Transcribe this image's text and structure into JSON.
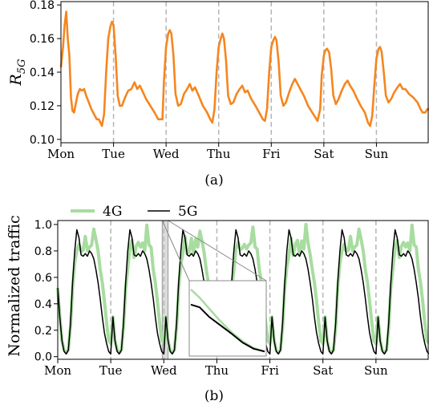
{
  "chart_data": [
    {
      "type": "line",
      "ylabel_main": "R",
      "ylabel_sub": "5G",
      "xticks": [
        "Mon",
        "Tue",
        "Wed",
        "Thu",
        "Fri",
        "Sat",
        "Sun"
      ],
      "yticks": [
        "0.10",
        "0.12",
        "0.14",
        "0.16",
        "0.18"
      ],
      "ylim": [
        0.098,
        0.182
      ],
      "xlim": [
        0,
        7
      ],
      "day_separators": [
        1,
        2,
        3,
        4,
        5,
        6
      ],
      "caption": "(a)",
      "series": [
        {
          "color": "#f5861f",
          "points": [
            [
              0.0,
              0.143
            ],
            [
              0.04,
              0.155
            ],
            [
              0.07,
              0.168
            ],
            [
              0.1,
              0.176
            ],
            [
              0.13,
              0.16
            ],
            [
              0.16,
              0.15
            ],
            [
              0.19,
              0.125
            ],
            [
              0.22,
              0.117
            ],
            [
              0.25,
              0.116
            ],
            [
              0.28,
              0.121
            ],
            [
              0.32,
              0.127
            ],
            [
              0.36,
              0.13
            ],
            [
              0.4,
              0.129
            ],
            [
              0.44,
              0.13
            ],
            [
              0.48,
              0.126
            ],
            [
              0.53,
              0.122
            ],
            [
              0.58,
              0.118
            ],
            [
              0.63,
              0.115
            ],
            [
              0.68,
              0.112
            ],
            [
              0.72,
              0.112
            ],
            [
              0.78,
              0.108
            ],
            [
              0.82,
              0.115
            ],
            [
              0.86,
              0.14
            ],
            [
              0.9,
              0.16
            ],
            [
              0.94,
              0.167
            ],
            [
              0.97,
              0.17
            ],
            [
              1.0,
              0.168
            ],
            [
              1.04,
              0.15
            ],
            [
              1.08,
              0.126
            ],
            [
              1.12,
              0.12
            ],
            [
              1.16,
              0.12
            ],
            [
              1.22,
              0.125
            ],
            [
              1.28,
              0.129
            ],
            [
              1.34,
              0.13
            ],
            [
              1.4,
              0.134
            ],
            [
              1.45,
              0.13
            ],
            [
              1.5,
              0.132
            ],
            [
              1.56,
              0.128
            ],
            [
              1.62,
              0.124
            ],
            [
              1.7,
              0.12
            ],
            [
              1.78,
              0.116
            ],
            [
              1.85,
              0.112
            ],
            [
              1.9,
              0.112
            ],
            [
              1.93,
              0.112
            ],
            [
              1.96,
              0.135
            ],
            [
              2.0,
              0.155
            ],
            [
              2.04,
              0.163
            ],
            [
              2.07,
              0.165
            ],
            [
              2.1,
              0.163
            ],
            [
              2.14,
              0.15
            ],
            [
              2.18,
              0.127
            ],
            [
              2.23,
              0.12
            ],
            [
              2.28,
              0.121
            ],
            [
              2.34,
              0.127
            ],
            [
              2.4,
              0.13
            ],
            [
              2.45,
              0.133
            ],
            [
              2.5,
              0.129
            ],
            [
              2.55,
              0.131
            ],
            [
              2.62,
              0.126
            ],
            [
              2.7,
              0.12
            ],
            [
              2.78,
              0.116
            ],
            [
              2.84,
              0.112
            ],
            [
              2.88,
              0.11
            ],
            [
              2.92,
              0.118
            ],
            [
              2.96,
              0.14
            ],
            [
              3.0,
              0.155
            ],
            [
              3.04,
              0.16
            ],
            [
              3.07,
              0.163
            ],
            [
              3.1,
              0.16
            ],
            [
              3.14,
              0.147
            ],
            [
              3.18,
              0.126
            ],
            [
              3.23,
              0.121
            ],
            [
              3.28,
              0.122
            ],
            [
              3.34,
              0.127
            ],
            [
              3.4,
              0.13
            ],
            [
              3.45,
              0.132
            ],
            [
              3.5,
              0.128
            ],
            [
              3.55,
              0.129
            ],
            [
              3.62,
              0.124
            ],
            [
              3.7,
              0.12
            ],
            [
              3.77,
              0.116
            ],
            [
              3.84,
              0.112
            ],
            [
              3.88,
              0.111
            ],
            [
              3.92,
              0.118
            ],
            [
              3.96,
              0.14
            ],
            [
              4.0,
              0.155
            ],
            [
              4.04,
              0.159
            ],
            [
              4.07,
              0.161
            ],
            [
              4.1,
              0.159
            ],
            [
              4.14,
              0.146
            ],
            [
              4.18,
              0.126
            ],
            [
              4.23,
              0.12
            ],
            [
              4.28,
              0.122
            ],
            [
              4.34,
              0.128
            ],
            [
              4.4,
              0.133
            ],
            [
              4.45,
              0.136
            ],
            [
              4.5,
              0.133
            ],
            [
              4.55,
              0.13
            ],
            [
              4.62,
              0.126
            ],
            [
              4.7,
              0.12
            ],
            [
              4.78,
              0.116
            ],
            [
              4.84,
              0.113
            ],
            [
              4.88,
              0.111
            ],
            [
              4.93,
              0.118
            ],
            [
              4.96,
              0.138
            ],
            [
              5.0,
              0.15
            ],
            [
              5.03,
              0.153
            ],
            [
              5.06,
              0.154
            ],
            [
              5.1,
              0.152
            ],
            [
              5.14,
              0.142
            ],
            [
              5.18,
              0.126
            ],
            [
              5.23,
              0.121
            ],
            [
              5.28,
              0.124
            ],
            [
              5.34,
              0.129
            ],
            [
              5.4,
              0.133
            ],
            [
              5.45,
              0.135
            ],
            [
              5.5,
              0.132
            ],
            [
              5.56,
              0.129
            ],
            [
              5.62,
              0.125
            ],
            [
              5.7,
              0.12
            ],
            [
              5.78,
              0.116
            ],
            [
              5.84,
              0.11
            ],
            [
              5.88,
              0.108
            ],
            [
              5.92,
              0.114
            ],
            [
              5.96,
              0.132
            ],
            [
              6.0,
              0.148
            ],
            [
              6.04,
              0.154
            ],
            [
              6.07,
              0.155
            ],
            [
              6.1,
              0.152
            ],
            [
              6.14,
              0.14
            ],
            [
              6.18,
              0.126
            ],
            [
              6.23,
              0.122
            ],
            [
              6.28,
              0.124
            ],
            [
              6.34,
              0.128
            ],
            [
              6.4,
              0.131
            ],
            [
              6.45,
              0.133
            ],
            [
              6.5,
              0.13
            ],
            [
              6.55,
              0.13
            ],
            [
              6.62,
              0.127
            ],
            [
              6.7,
              0.125
            ],
            [
              6.78,
              0.122
            ],
            [
              6.84,
              0.118
            ],
            [
              6.88,
              0.116
            ],
            [
              6.93,
              0.116
            ],
            [
              6.97,
              0.118
            ],
            [
              7.0,
              0.118
            ]
          ]
        }
      ]
    },
    {
      "type": "line",
      "ylabel": "Normalized traffic",
      "xticks": [
        "Mon",
        "Tue",
        "Wed",
        "Thu",
        "Fri",
        "Sat",
        "Sun"
      ],
      "yticks": [
        "0.0",
        "0.2",
        "0.4",
        "0.6",
        "0.8",
        "1.0"
      ],
      "ylim": [
        -0.02,
        1.03
      ],
      "xlim": [
        0,
        7
      ],
      "day_separators": [
        1,
        2,
        3,
        4,
        5,
        6
      ],
      "caption": "(b)",
      "highlight_band": [
        1.97,
        2.08
      ],
      "series": [
        {
          "name": "4G",
          "color": "#a8dca0",
          "day_profile": [
            [
              0.0,
              0.52
            ],
            [
              0.04,
              0.3
            ],
            [
              0.08,
              0.12
            ],
            [
              0.12,
              0.05
            ],
            [
              0.16,
              0.03
            ],
            [
              0.2,
              0.05
            ],
            [
              0.24,
              0.22
            ],
            [
              0.28,
              0.52
            ],
            [
              0.32,
              0.68
            ],
            [
              0.36,
              0.8
            ],
            [
              0.4,
              0.88
            ],
            [
              0.44,
              0.78
            ],
            [
              0.48,
              0.82
            ],
            [
              0.52,
              0.88
            ],
            [
              0.56,
              0.8
            ],
            [
              0.6,
              0.86
            ],
            [
              0.64,
              0.83
            ],
            [
              0.68,
              0.98
            ],
            [
              0.72,
              0.86
            ],
            [
              0.76,
              0.8
            ],
            [
              0.8,
              0.66
            ],
            [
              0.84,
              0.56
            ],
            [
              0.88,
              0.42
            ],
            [
              0.92,
              0.26
            ],
            [
              0.96,
              0.12
            ],
            [
              1.0,
              0.1
            ]
          ]
        },
        {
          "name": "5G",
          "color": "#000000",
          "day_profile": [
            [
              0.0,
              0.52
            ],
            [
              0.04,
              0.3
            ],
            [
              0.08,
              0.12
            ],
            [
              0.12,
              0.04
            ],
            [
              0.16,
              0.02
            ],
            [
              0.2,
              0.05
            ],
            [
              0.24,
              0.25
            ],
            [
              0.28,
              0.56
            ],
            [
              0.32,
              0.8
            ],
            [
              0.36,
              0.96
            ],
            [
              0.4,
              0.9
            ],
            [
              0.44,
              0.77
            ],
            [
              0.48,
              0.76
            ],
            [
              0.52,
              0.78
            ],
            [
              0.56,
              0.76
            ],
            [
              0.6,
              0.8
            ],
            [
              0.64,
              0.78
            ],
            [
              0.68,
              0.74
            ],
            [
              0.72,
              0.66
            ],
            [
              0.76,
              0.56
            ],
            [
              0.8,
              0.44
            ],
            [
              0.84,
              0.3
            ],
            [
              0.88,
              0.18
            ],
            [
              0.92,
              0.1
            ],
            [
              0.96,
              0.04
            ],
            [
              1.0,
              0.02
            ]
          ]
        }
      ],
      "inset": {
        "series_4g": [
          [
            0,
            0.92
          ],
          [
            0.12,
            0.8
          ],
          [
            0.25,
            0.64
          ],
          [
            0.4,
            0.46
          ],
          [
            0.55,
            0.3
          ],
          [
            0.7,
            0.17
          ],
          [
            0.85,
            0.07
          ],
          [
            1.0,
            0.02
          ]
        ],
        "series_5g": [
          [
            0,
            0.7
          ],
          [
            0.12,
            0.66
          ],
          [
            0.25,
            0.52
          ],
          [
            0.4,
            0.4
          ],
          [
            0.55,
            0.28
          ],
          [
            0.7,
            0.15
          ],
          [
            0.85,
            0.06
          ],
          [
            1.0,
            0.02
          ]
        ]
      }
    }
  ]
}
